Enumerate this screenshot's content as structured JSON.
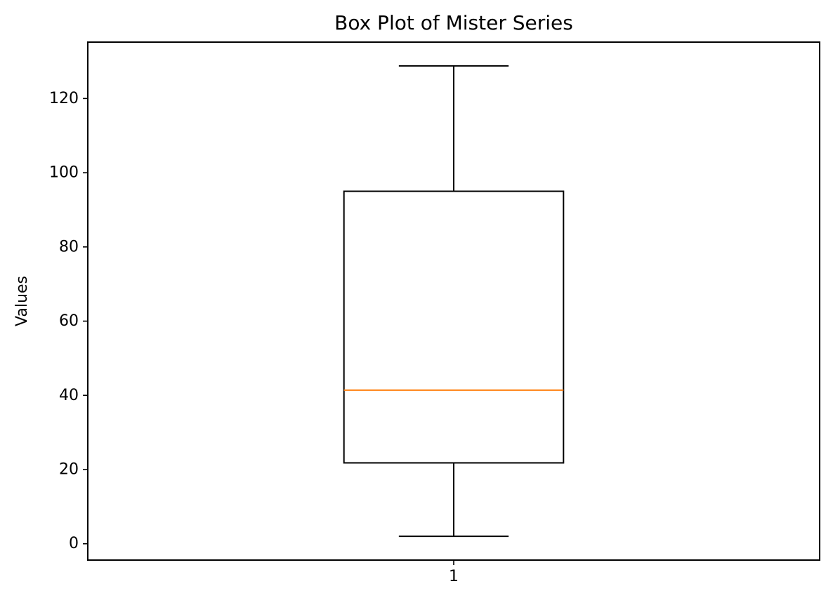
{
  "chart_data": {
    "type": "box",
    "title": "Box Plot of Mister Series",
    "xlabel": "",
    "ylabel": "Values",
    "categories": [
      "1"
    ],
    "boxes": [
      {
        "label": "1",
        "whisker_low": 2,
        "q1": 21.8,
        "median": 41.4,
        "q3": 95,
        "whisker_high": 128.8
      }
    ],
    "ylim": [
      -4.4,
      135.2
    ],
    "yticks": [
      0,
      20,
      40,
      60,
      80,
      100,
      120
    ],
    "ytick_labels": [
      "0",
      "20",
      "40",
      "60",
      "80",
      "100",
      "120"
    ],
    "grid": false,
    "colors": {
      "box": "#000000",
      "median": "#ff7f0e"
    }
  }
}
